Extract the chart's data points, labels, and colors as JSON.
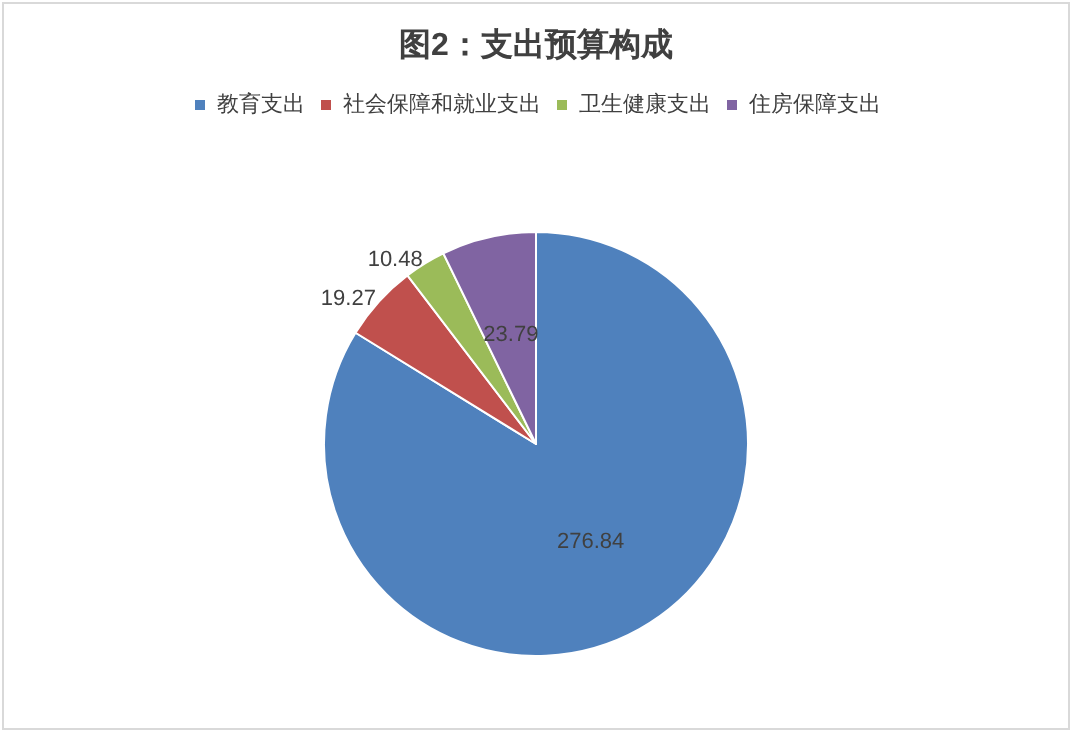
{
  "chart_data": {
    "type": "pie",
    "title": "图2：支出预算构成",
    "categories": [
      "教育支出",
      "社会保障和就业支出",
      "卫生健康支出",
      "住房保障支出"
    ],
    "values": [
      276.84,
      19.27,
      10.48,
      23.79
    ],
    "colors": [
      "#4f81bd",
      "#c0504d",
      "#9bbb59",
      "#8064a2"
    ],
    "data_labels": true,
    "legend": "top"
  }
}
